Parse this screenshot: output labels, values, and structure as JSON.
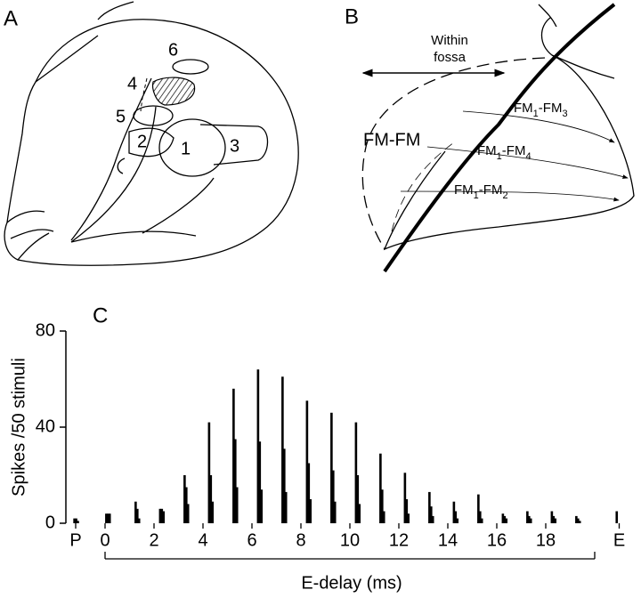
{
  "panel_a": {
    "label": "A",
    "areas": [
      "6",
      "4",
      "5",
      "2",
      "1",
      "3"
    ]
  },
  "panel_b": {
    "label": "B",
    "within": [
      "Within",
      "fossa"
    ],
    "fmfm": "FM-FM",
    "pairs": [
      [
        "FM",
        "1",
        "-FM",
        "3"
      ],
      [
        "FM",
        "1",
        "-FM",
        "4"
      ],
      [
        "FM",
        "1",
        "-FM",
        "2"
      ]
    ]
  },
  "chart_data": {
    "type": "bar",
    "panel_label": "C",
    "y_label": "Spikes /50 stimuli",
    "x_label": "E-delay (ms)",
    "x": [
      -1.25,
      -1.18,
      -1.11,
      0.05,
      0.12,
      0.19,
      1.25,
      1.32,
      1.39,
      2.25,
      2.32,
      2.39,
      3.25,
      3.32,
      3.39,
      4.25,
      4.32,
      4.39,
      5.25,
      5.32,
      5.39,
      6.25,
      6.32,
      6.39,
      7.25,
      7.32,
      7.39,
      8.25,
      8.32,
      8.39,
      9.25,
      9.32,
      9.39,
      10.25,
      10.32,
      10.39,
      11.25,
      11.32,
      11.39,
      12.25,
      12.32,
      12.39,
      13.25,
      13.32,
      13.39,
      14.25,
      14.32,
      14.39,
      15.25,
      15.32,
      15.39,
      16.25,
      16.32,
      16.39,
      17.25,
      17.32,
      17.39,
      18.25,
      18.32,
      18.39,
      19.25,
      19.32,
      19.39,
      20.9
    ],
    "values": [
      2,
      2,
      1,
      4,
      4,
      4,
      9,
      6,
      2,
      6,
      6,
      5,
      20,
      15,
      8,
      42,
      20,
      9,
      56,
      35,
      15,
      64,
      34,
      14,
      61,
      31,
      13,
      51,
      25,
      10,
      46,
      22,
      9,
      42,
      20,
      8,
      29,
      14,
      5,
      21,
      10,
      4,
      13,
      7,
      3,
      9,
      5,
      2,
      12,
      5,
      2,
      4,
      3,
      2,
      5,
      3,
      2,
      5,
      3,
      2,
      3,
      2,
      1,
      5
    ],
    "color": "#000000",
    "xlim": [
      -1.6,
      21.3
    ],
    "ylim": [
      0,
      80
    ],
    "yticks": [
      0,
      40,
      80
    ],
    "xticks": [
      {
        "value": -1.2,
        "label": "P"
      },
      0,
      2,
      4,
      6,
      8,
      10,
      12,
      14,
      16,
      18,
      {
        "value": 21,
        "label": "E"
      }
    ],
    "bracket": [
      0,
      20
    ]
  }
}
